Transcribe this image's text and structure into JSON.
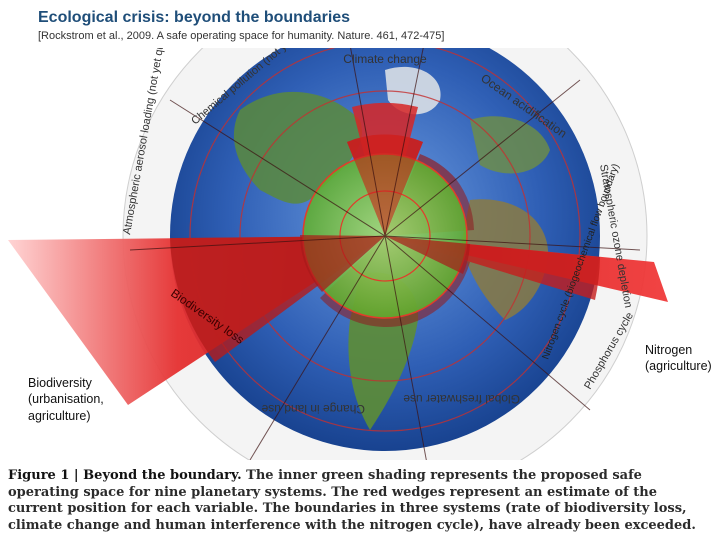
{
  "header": {
    "title": "Ecological crisis: beyond the boundaries",
    "subtitle": "[Rockstrom et al., 2009. A safe operating space for humanity. Nature. 461, 472-475]"
  },
  "diagram": {
    "ring_labels": {
      "climate_change": "Climate change",
      "ocean_acidification": "Ocean acidification",
      "stratospheric_ozone": "Stratospheric ozone depletion",
      "nitrogen": "Nitrogen cycle (biogeochemical flow boundary)",
      "phosphorus": "Phosphorus cycle",
      "freshwater": "Global freshwater use",
      "land_use": "Change in land use",
      "biodiversity": "Biodiversity loss",
      "aerosol": "Atmospheric aerosol loading (not yet quantified)",
      "chemical": "Chemical pollution (not yet quantified)"
    },
    "colors": {
      "safe": "#7cc243",
      "exceeded": "#e0201e",
      "globe": "#2f5fb5"
    }
  },
  "callouts": {
    "biodiversity": "Biodiversity (urbanisation, agriculture)",
    "nitrogen": "Nitrogen (agriculture)"
  },
  "caption": {
    "label": "Figure 1 | Beyond the boundary.",
    "text": "The inner green shading represents the proposed safe operating space for nine planetary systems. The red wedges represent an estimate of the current position for each variable. The boundaries in three systems (rate of biodiversity loss, climate change and human interference with the nitrogen cycle), have already been exceeded."
  }
}
